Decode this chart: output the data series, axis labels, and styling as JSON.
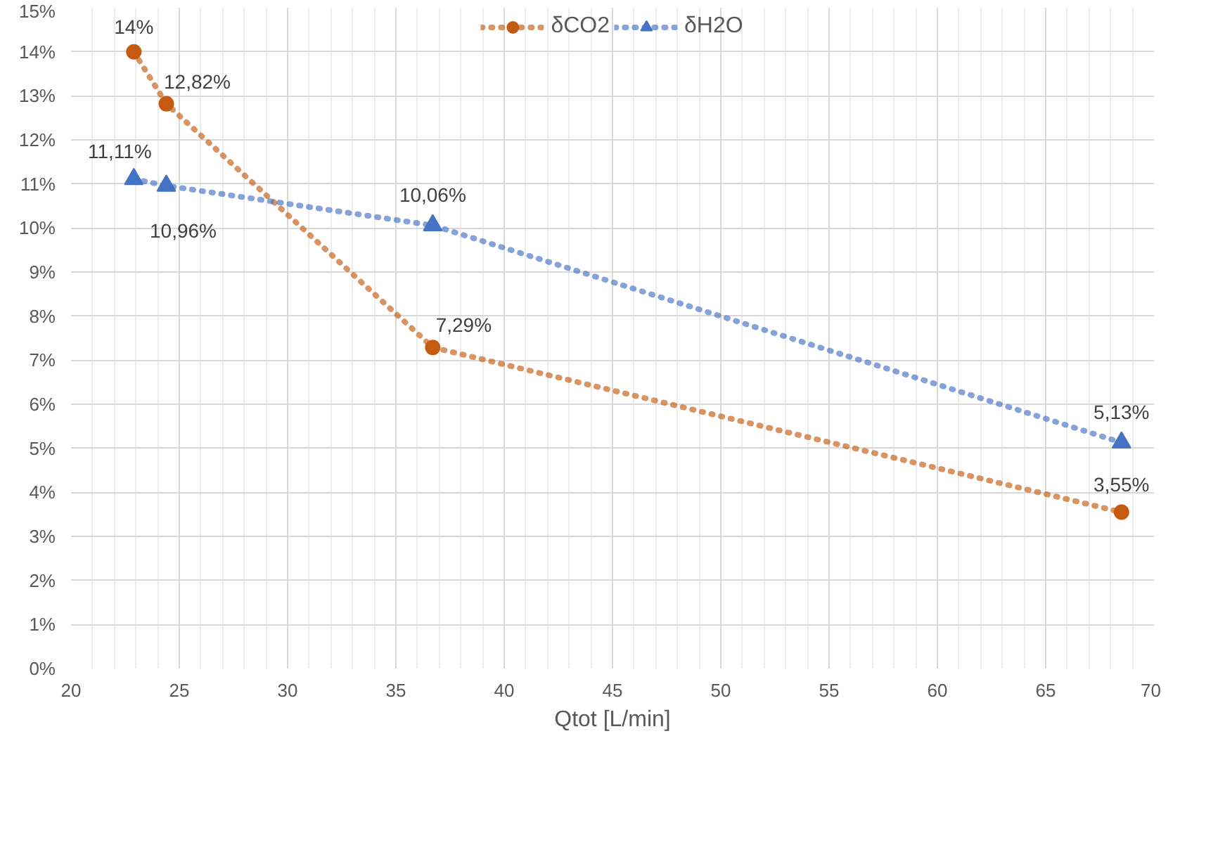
{
  "chart_data": {
    "type": "line",
    "xlabel": "Qtot [L/min]",
    "xlim": [
      20,
      70
    ],
    "xticks": [
      20,
      25,
      30,
      35,
      40,
      45,
      50,
      55,
      60,
      65,
      70
    ],
    "ylim": [
      0,
      15
    ],
    "yticks": [
      {
        "value": 0,
        "label": "0%"
      },
      {
        "value": 1,
        "label": "1%"
      },
      {
        "value": 2,
        "label": "2%"
      },
      {
        "value": 3,
        "label": "3%"
      },
      {
        "value": 4,
        "label": "4%"
      },
      {
        "value": 5,
        "label": "5%"
      },
      {
        "value": 6,
        "label": "6%"
      },
      {
        "value": 7,
        "label": "7%"
      },
      {
        "value": 8,
        "label": "8%"
      },
      {
        "value": 9,
        "label": "9%"
      },
      {
        "value": 10,
        "label": "10%"
      },
      {
        "value": 11,
        "label": "11%"
      },
      {
        "value": 12,
        "label": "12%"
      },
      {
        "value": 13,
        "label": "13%"
      },
      {
        "value": 14,
        "label": "14%"
      },
      {
        "value": 15,
        "label": "15%"
      }
    ],
    "grid": true,
    "legend": "top",
    "line_style": "dotted",
    "series": [
      {
        "name": "δCO2",
        "color": "#c55a11",
        "marker": "circle",
        "x": [
          22.9,
          24.4,
          36.7,
          68.5
        ],
        "values": [
          14,
          12.82,
          7.29,
          3.55
        ],
        "value_labels": [
          "14%",
          "12,82%",
          "7,29%",
          "3,55%"
        ]
      },
      {
        "name": "δH2O",
        "color": "#4472c4",
        "marker": "triangle",
        "x": [
          22.9,
          24.4,
          36.7,
          68.5
        ],
        "values": [
          11.11,
          10.96,
          10.06,
          5.13
        ],
        "value_labels": [
          "11,11%",
          "10,96%",
          "10,06%",
          "5,13%"
        ]
      }
    ]
  }
}
